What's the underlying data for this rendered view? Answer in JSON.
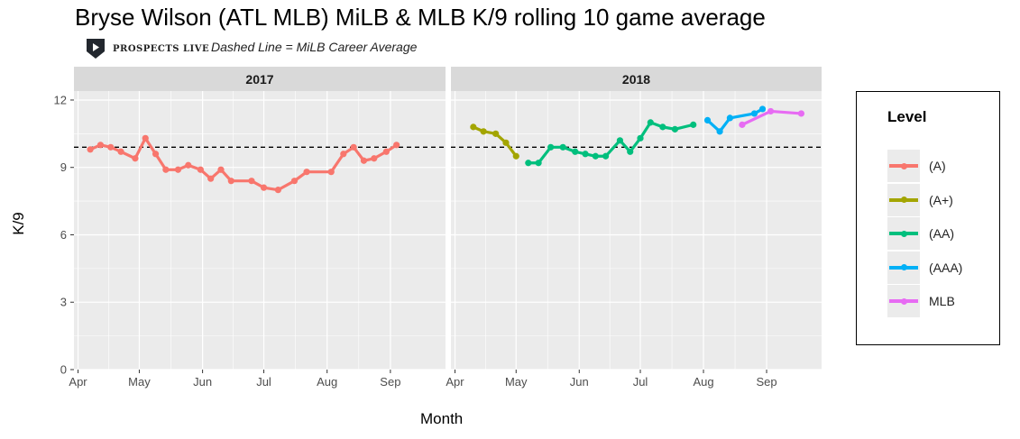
{
  "title": "Bryse Wilson (ATL MLB) MiLB & MLB K/9 rolling 10 game average",
  "logo_text": "PROSPECTS LIVE",
  "subtitle": "Dashed Line = MiLB Career Average",
  "colors": {
    "(A)": "#f8766d",
    "(A+)": "#a3a500",
    "(AA)": "#00bf7d",
    "(AAA)": "#00b0f6",
    "MLB": "#e76bf3"
  },
  "chart_data": {
    "type": "line",
    "xlabel": "Month",
    "ylabel": "K/9",
    "ylim": [
      0,
      12.4
    ],
    "yticks": [
      0,
      3,
      6,
      9,
      12
    ],
    "reference_line": {
      "y": 9.9,
      "style": "dashed"
    },
    "x_tick_labels": [
      "Apr",
      "May",
      "Jun",
      "Jul",
      "Aug",
      "Sep"
    ],
    "grid": true,
    "legend": {
      "title": "Level",
      "placement": "right",
      "entries": [
        "(A)",
        "(A+)",
        "(AA)",
        "(AAA)",
        "MLB"
      ]
    },
    "panels": [
      {
        "label": "2017",
        "series": [
          {
            "name": "(A)",
            "points": [
              [
                "2017-04-07",
                9.8
              ],
              [
                "2017-04-12",
                10.0
              ],
              [
                "2017-04-17",
                9.9
              ],
              [
                "2017-04-22",
                9.7
              ],
              [
                "2017-04-29",
                9.4
              ],
              [
                "2017-05-04",
                10.3
              ],
              [
                "2017-05-09",
                9.6
              ],
              [
                "2017-05-14",
                8.9
              ],
              [
                "2017-05-20",
                8.9
              ],
              [
                "2017-05-25",
                9.1
              ],
              [
                "2017-05-31",
                8.9
              ],
              [
                "2017-06-05",
                8.5
              ],
              [
                "2017-06-10",
                8.9
              ],
              [
                "2017-06-15",
                8.4
              ],
              [
                "2017-06-25",
                8.4
              ],
              [
                "2017-07-01",
                8.1
              ],
              [
                "2017-07-08",
                8.0
              ],
              [
                "2017-07-16",
                8.4
              ],
              [
                "2017-07-22",
                8.8
              ],
              [
                "2017-08-03",
                8.8
              ],
              [
                "2017-08-09",
                9.6
              ],
              [
                "2017-08-14",
                9.9
              ],
              [
                "2017-08-19",
                9.3
              ],
              [
                "2017-08-24",
                9.4
              ],
              [
                "2017-08-30",
                9.7
              ],
              [
                "2017-09-04",
                10.0
              ]
            ]
          }
        ]
      },
      {
        "label": "2018",
        "series": [
          {
            "name": "(A+)",
            "points": [
              [
                "2018-04-10",
                10.8
              ],
              [
                "2018-04-15",
                10.6
              ],
              [
                "2018-04-21",
                10.5
              ],
              [
                "2018-04-26",
                10.1
              ],
              [
                "2018-05-01",
                9.5
              ]
            ]
          },
          {
            "name": "(AA)",
            "points": [
              [
                "2018-05-07",
                9.2
              ],
              [
                "2018-05-12",
                9.2
              ],
              [
                "2018-05-18",
                9.9
              ],
              [
                "2018-05-24",
                9.9
              ],
              [
                "2018-05-30",
                9.7
              ],
              [
                "2018-06-04",
                9.6
              ],
              [
                "2018-06-09",
                9.5
              ],
              [
                "2018-06-14",
                9.5
              ],
              [
                "2018-06-21",
                10.2
              ],
              [
                "2018-06-26",
                9.7
              ],
              [
                "2018-07-01",
                10.3
              ],
              [
                "2018-07-06",
                11.0
              ],
              [
                "2018-07-12",
                10.8
              ],
              [
                "2018-07-18",
                10.7
              ],
              [
                "2018-07-27",
                10.9
              ]
            ]
          },
          {
            "name": "(AAA)",
            "points": [
              [
                "2018-08-03",
                11.1
              ],
              [
                "2018-08-09",
                10.6
              ],
              [
                "2018-08-14",
                11.2
              ],
              [
                "2018-08-26",
                11.4
              ],
              [
                "2018-08-30",
                11.6
              ]
            ]
          },
          {
            "name": "MLB",
            "points": [
              [
                "2018-08-20",
                10.9
              ],
              [
                "2018-09-03",
                11.5
              ],
              [
                "2018-09-18",
                11.4
              ]
            ]
          }
        ]
      }
    ]
  }
}
